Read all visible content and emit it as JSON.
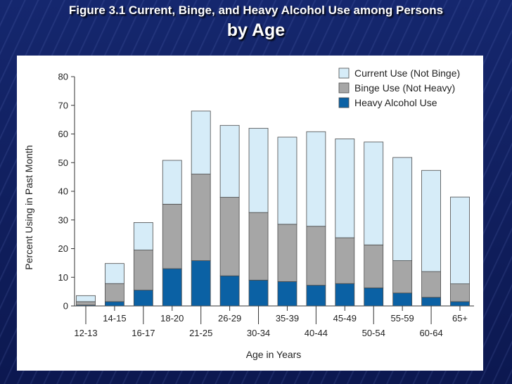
{
  "slide": {
    "title_line1": "Figure 3.1 Current, Binge, and Heavy Alcohol Use among Persons",
    "title_line2": "by Age"
  },
  "colors": {
    "current": "#d6ecf8",
    "binge": "#a6a6a6",
    "heavy": "#0b61a4",
    "bar_stroke": "#4a4a4a"
  },
  "chart_data": {
    "type": "bar",
    "stacked": true,
    "xlabel": "Age in Years",
    "ylabel": "Percent Using in Past Month",
    "ylim": [
      0,
      80
    ],
    "yticks": [
      0,
      10,
      20,
      30,
      40,
      50,
      60,
      70,
      80
    ],
    "legend_position": "top-right",
    "categories": [
      "12-13",
      "14-15",
      "16-17",
      "18-20",
      "21-25",
      "26-29",
      "30-34",
      "35-39",
      "40-44",
      "45-49",
      "50-54",
      "55-59",
      "60-64",
      "65+"
    ],
    "series": [
      {
        "name": "Heavy Alcohol Use",
        "key": "heavy",
        "values": [
          0.3,
          1.5,
          5.5,
          13.0,
          15.8,
          10.5,
          9.0,
          8.5,
          7.2,
          7.8,
          6.3,
          4.5,
          3.0,
          1.5
        ]
      },
      {
        "name": "Binge Use (Not Heavy)",
        "key": "binge",
        "values": [
          1.2,
          6.3,
          14.0,
          22.5,
          30.2,
          27.4,
          23.6,
          20.0,
          20.6,
          16.0,
          15.0,
          11.3,
          9.0,
          6.2
        ]
      },
      {
        "name": "Current Use (Not Binge)",
        "key": "current",
        "values": [
          2.1,
          7.0,
          9.6,
          15.3,
          22.0,
          25.1,
          29.4,
          30.4,
          33.0,
          34.5,
          35.9,
          36.0,
          35.3,
          30.3
        ]
      }
    ],
    "legend_order": [
      "current",
      "binge",
      "heavy"
    ]
  }
}
